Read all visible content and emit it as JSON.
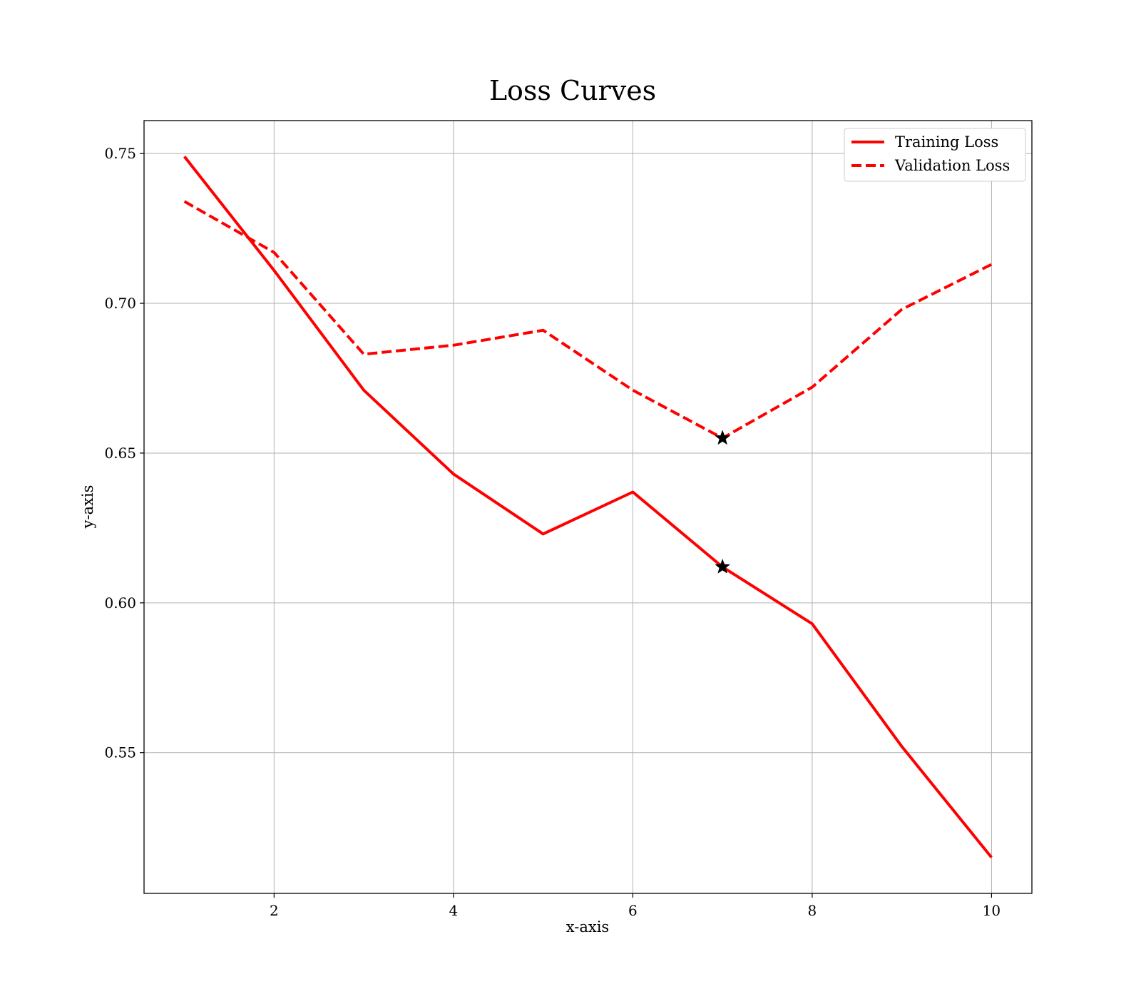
{
  "chart_data": {
    "type": "line",
    "title": "Loss Curves",
    "xlabel": "x-axis",
    "ylabel": "y-axis",
    "xlim": [
      0.55,
      10.45
    ],
    "ylim": [
      0.503,
      0.761
    ],
    "xticks": [
      2,
      4,
      6,
      8,
      10
    ],
    "xtick_labels": [
      "2",
      "4",
      "6",
      "8",
      "10"
    ],
    "yticks": [
      0.55,
      0.6,
      0.65,
      0.7,
      0.75
    ],
    "ytick_labels": [
      "0.55",
      "0.60",
      "0.65",
      "0.70",
      "0.75"
    ],
    "grid": true,
    "legend_position": "top-right",
    "x": [
      1,
      2,
      3,
      4,
      5,
      6,
      7,
      8,
      9,
      10
    ],
    "series": [
      {
        "name": "Training Loss",
        "style": "solid",
        "color": "#ff0000",
        "values": [
          0.749,
          0.711,
          0.671,
          0.643,
          0.623,
          0.637,
          0.612,
          0.593,
          0.552,
          0.515
        ]
      },
      {
        "name": "Validation Loss",
        "style": "dashed",
        "color": "#ff0000",
        "values": [
          0.734,
          0.717,
          0.683,
          0.686,
          0.691,
          0.671,
          0.655,
          0.672,
          0.698,
          0.713
        ]
      }
    ],
    "markers": [
      {
        "series": "Training Loss",
        "x": 7,
        "y": 0.612,
        "symbol": "star",
        "color": "#000000"
      },
      {
        "series": "Validation Loss",
        "x": 7,
        "y": 0.655,
        "symbol": "star",
        "color": "#000000"
      }
    ]
  }
}
